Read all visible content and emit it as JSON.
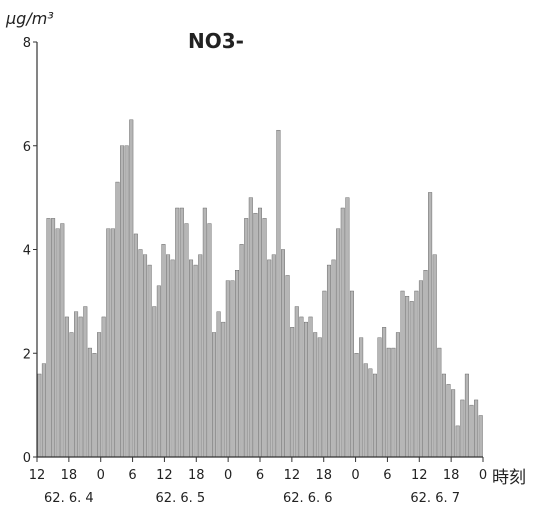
{
  "chart_data": {
    "type": "bar",
    "title": "NO3-",
    "ylabel": "μg/m³",
    "xlabel": "時刻",
    "ylim": [
      0,
      8
    ],
    "yticks": [
      "0",
      "2",
      "4",
      "6",
      "8"
    ],
    "xticks": [
      "12",
      "18",
      "0",
      "6",
      "12",
      "18",
      "0",
      "6",
      "12",
      "18",
      "0",
      "6",
      "12",
      "18",
      "0"
    ],
    "date_labels": [
      "62. 6. 4",
      "62. 6. 5",
      "62. 6. 6",
      "62. 6. 7"
    ],
    "grid": false,
    "legend": "none",
    "bar_color": "#7a7a7a",
    "values": [
      1.6,
      1.8,
      4.6,
      4.6,
      4.4,
      4.5,
      2.7,
      2.4,
      2.8,
      2.7,
      2.9,
      2.1,
      2.0,
      2.4,
      2.7,
      4.4,
      4.4,
      5.3,
      6.0,
      6.0,
      6.5,
      4.3,
      4.0,
      3.9,
      3.7,
      2.9,
      3.3,
      4.1,
      3.9,
      3.8,
      4.8,
      4.8,
      4.5,
      3.8,
      3.7,
      3.9,
      4.8,
      4.5,
      2.4,
      2.8,
      2.6,
      3.4,
      3.4,
      3.6,
      4.1,
      4.6,
      5.0,
      4.7,
      4.8,
      4.6,
      3.8,
      3.9,
      6.3,
      4.0,
      3.5,
      2.5,
      2.9,
      2.7,
      2.6,
      2.7,
      2.4,
      2.3,
      3.2,
      3.7,
      3.8,
      4.4,
      4.8,
      5.0,
      3.2,
      2.0,
      2.3,
      1.8,
      1.7,
      1.6,
      2.3,
      2.5,
      2.1,
      2.1,
      2.4,
      3.2,
      3.1,
      3.0,
      3.2,
      3.4,
      3.6,
      5.1,
      3.9,
      2.1,
      1.6,
      1.4,
      1.3,
      0.6,
      1.1,
      1.6,
      1.0,
      1.1,
      0.8
    ]
  }
}
